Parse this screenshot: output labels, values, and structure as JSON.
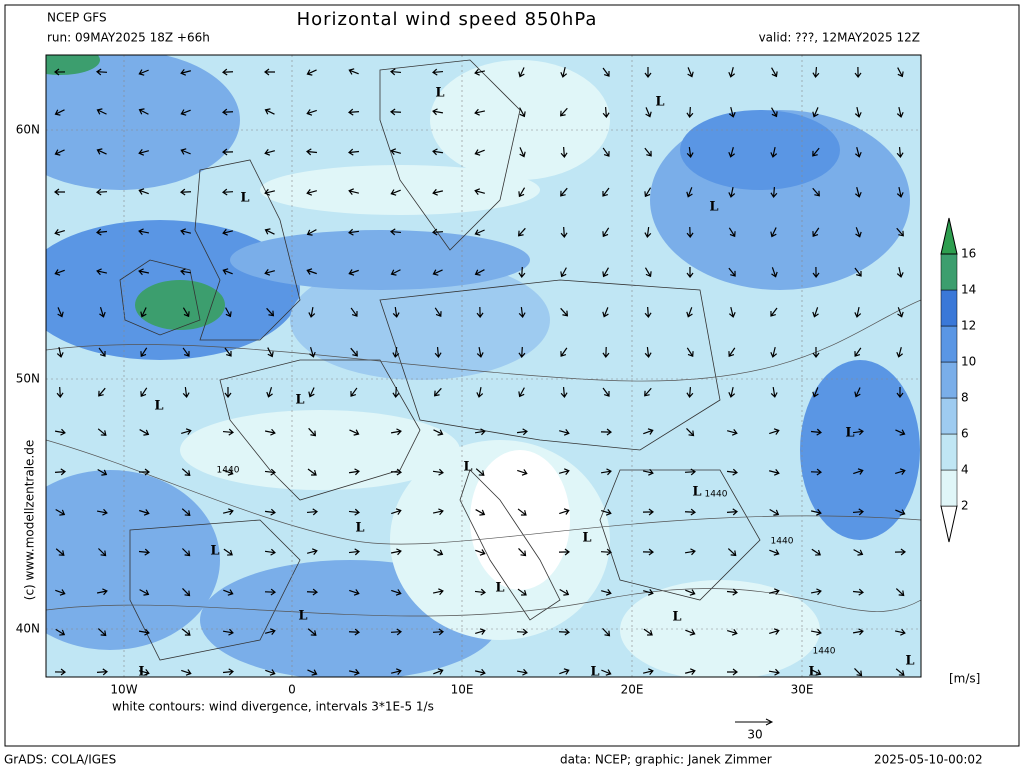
{
  "header": {
    "model": "NCEP GFS",
    "run": "run: 09MAY2025 18Z +66h",
    "title": "Horizontal wind speed 850hPa",
    "valid": "valid: ???, 12MAY2025 12Z"
  },
  "map": {
    "lat_labels": [
      "60N",
      "50N",
      "40N"
    ],
    "lon_labels": [
      "10W",
      "0",
      "10E",
      "20E",
      "30E"
    ],
    "lows": [
      "L",
      "L",
      "L",
      "L",
      "L",
      "L",
      "L",
      "L",
      "L",
      "L",
      "L",
      "L",
      "L",
      "L",
      "L",
      "L",
      "L",
      "L",
      "L"
    ],
    "height_labels": [
      "1440",
      "1440",
      "1440",
      "1440"
    ],
    "copyright": "(c) www.modellzentrale.de",
    "note": "white contours: wind divergence, intervals 3*1E-5 1/s",
    "scale_arrow": "30"
  },
  "colorbar": {
    "unit": "[m/s]",
    "ticks": [
      2,
      4,
      6,
      8,
      10,
      12,
      14,
      16
    ],
    "colors": [
      "#ffffff",
      "#e0f6f8",
      "#c0e6f4",
      "#9ecbf0",
      "#7aaee9",
      "#5a96e4",
      "#3a78d8",
      "#3c9e6e",
      "#2e9e4f"
    ]
  },
  "footer": {
    "software": "GrADS: COLA/IGES",
    "credit": "data: NCEP; graphic: Janek Zimmer",
    "timestamp": "2025-05-10-00:02"
  }
}
